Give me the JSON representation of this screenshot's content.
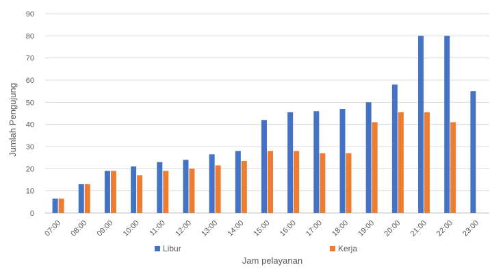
{
  "chart_data": {
    "type": "bar",
    "title": "",
    "xlabel": "Jam pelayanan",
    "ylabel": "Jumlah Pengujung",
    "ylim": [
      0,
      90
    ],
    "yticks": [
      0,
      10,
      20,
      30,
      40,
      50,
      60,
      70,
      80,
      90
    ],
    "grid": true,
    "legend_position": "bottom",
    "categories": [
      "07:00",
      "08:00",
      "09:00",
      "10:00",
      "11:00",
      "12:00",
      "13:00",
      "14:00",
      "15:00",
      "16:00",
      "17:00",
      "18:00",
      "19:00",
      "20:00",
      "21:00",
      "22:00",
      "23:00"
    ],
    "series": [
      {
        "name": "Libur",
        "color": "#4472C4",
        "values": [
          6.5,
          13,
          19,
          21,
          23,
          24,
          26.5,
          28,
          42,
          45.5,
          46,
          47,
          50,
          58,
          80,
          80,
          55
        ]
      },
      {
        "name": "Kerja",
        "color": "#ED7D31",
        "values": [
          6.5,
          13,
          19,
          17,
          19,
          20,
          21.5,
          23.5,
          28,
          28,
          27,
          27,
          41,
          45.5,
          45.5,
          41,
          null
        ]
      }
    ]
  }
}
